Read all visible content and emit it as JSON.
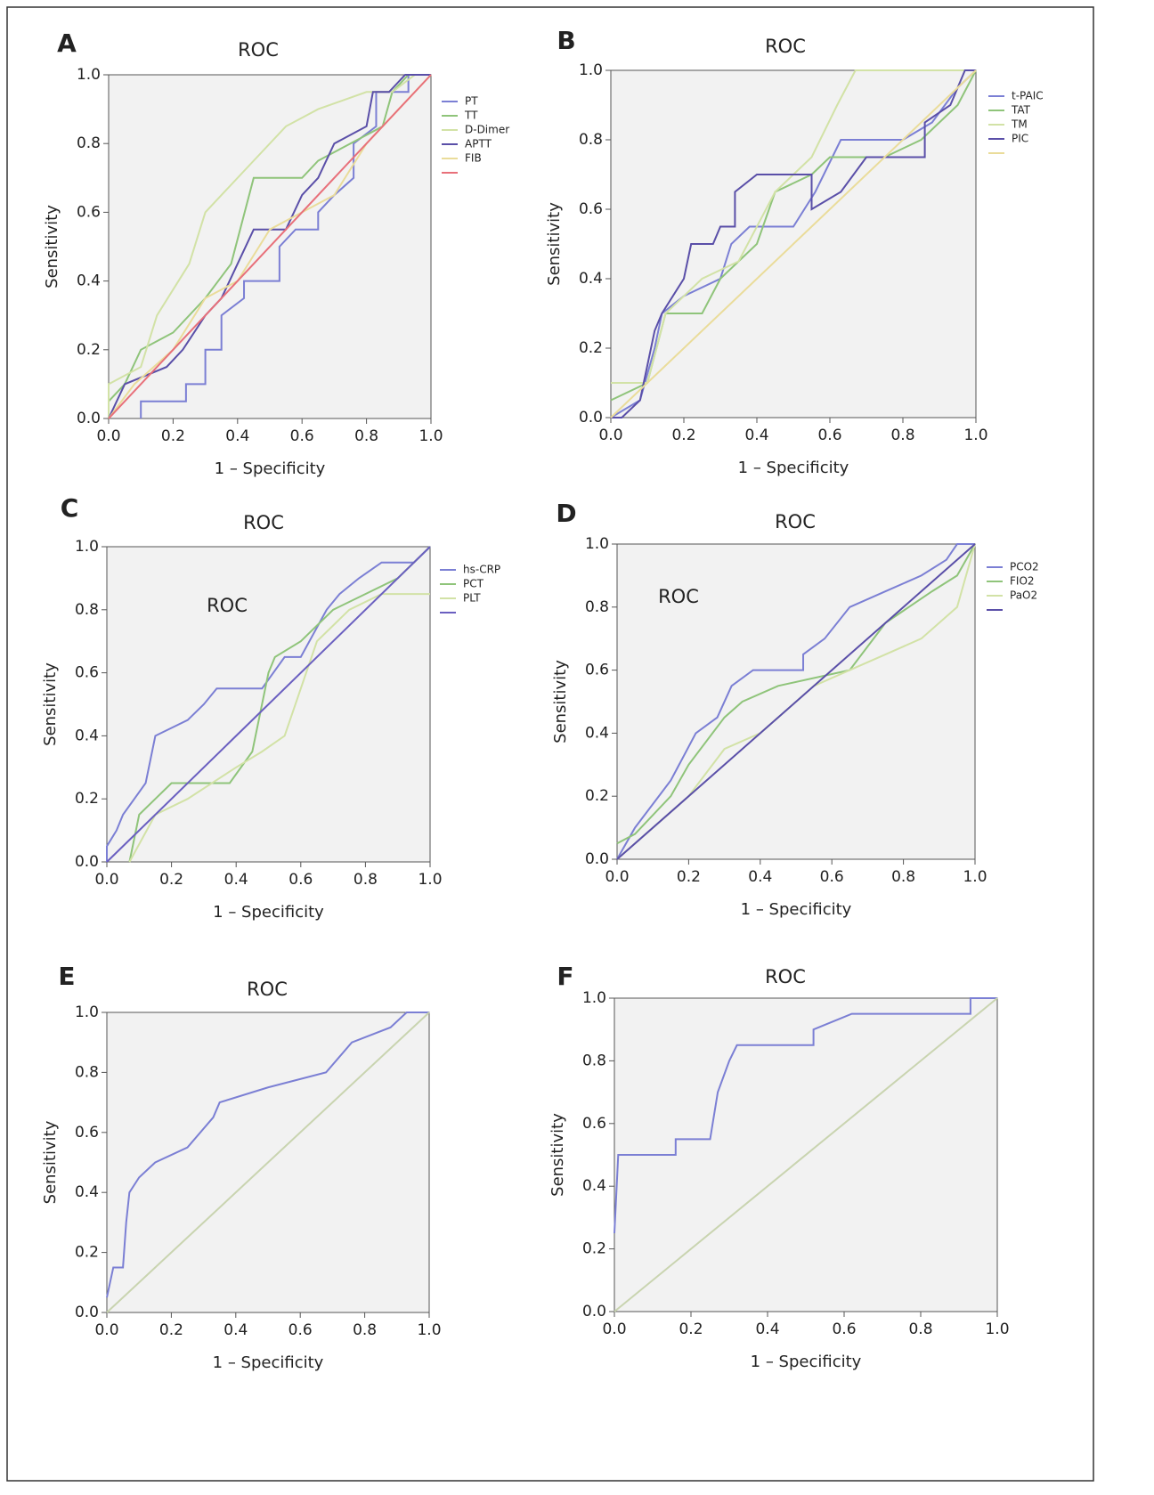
{
  "chart_data": [
    {
      "type": "line",
      "label": "A",
      "title": "ROC",
      "x_label": "1 – Specificity",
      "y_label": "Sensitivity",
      "legend": true,
      "xlim": [
        0,
        1
      ],
      "ylim": [
        0,
        1
      ],
      "xticks": [
        {
          "value": 0,
          "label": "0.0"
        },
        0.2,
        0.4,
        0.6,
        0.8,
        {
          "value": 1,
          "label": "1.0"
        }
      ],
      "yticks": [
        {
          "value": 0,
          "label": "0.0"
        },
        0.2,
        0.4,
        0.6,
        0.8,
        {
          "value": 1,
          "label": "1.0"
        }
      ],
      "series": [
        {
          "name": "PT",
          "color": "#7b7fd4",
          "x": [
            0.1,
            0.1,
            0.24,
            0.24,
            0.3,
            0.3,
            0.35,
            0.35,
            0.42,
            0.42,
            0.53,
            0.53,
            0.58,
            0.65,
            0.65,
            0.7,
            0.76,
            0.76,
            0.83,
            0.83,
            0.93,
            0.93,
            1
          ],
          "values": [
            0,
            0.05,
            0.05,
            0.1,
            0.1,
            0.2,
            0.2,
            0.3,
            0.35,
            0.4,
            0.4,
            0.5,
            0.55,
            0.55,
            0.6,
            0.65,
            0.7,
            0.8,
            0.85,
            0.95,
            0.95,
            1,
            1
          ]
        },
        {
          "name": "TT",
          "color": "#8fc47a",
          "x": [
            0,
            0,
            0.05,
            0.1,
            0.2,
            0.3,
            0.38,
            0.45,
            0.6,
            0.65,
            0.75,
            0.85,
            0.88,
            0.93,
            1
          ],
          "values": [
            0,
            0.05,
            0.1,
            0.2,
            0.25,
            0.35,
            0.45,
            0.7,
            0.7,
            0.75,
            0.8,
            0.85,
            0.95,
            1,
            1
          ]
        },
        {
          "name": "D-Dimer",
          "color": "#d2e2a6",
          "x": [
            0,
            0,
            0.1,
            0.15,
            0.25,
            0.3,
            0.35,
            0.45,
            0.55,
            0.65,
            0.8,
            0.88,
            0.95,
            1
          ],
          "values": [
            0,
            0.1,
            0.15,
            0.3,
            0.45,
            0.6,
            0.65,
            0.75,
            0.85,
            0.9,
            0.95,
            0.95,
            1,
            1
          ]
        },
        {
          "name": "APTT",
          "color": "#5a4fa8",
          "x": [
            0,
            0.05,
            0.18,
            0.23,
            0.3,
            0.35,
            0.4,
            0.45,
            0.55,
            0.6,
            0.65,
            0.7,
            0.8,
            0.82,
            0.87,
            0.92,
            1
          ],
          "values": [
            0,
            0.1,
            0.15,
            0.2,
            0.3,
            0.35,
            0.45,
            0.55,
            0.55,
            0.65,
            0.7,
            0.8,
            0.85,
            0.95,
            0.95,
            1,
            1
          ]
        },
        {
          "name": "FIB",
          "color": "#eadc9a",
          "x": [
            0,
            0.08,
            0.2,
            0.3,
            0.4,
            0.5,
            0.6,
            0.7,
            0.8,
            0.9,
            1
          ],
          "values": [
            0,
            0.1,
            0.2,
            0.35,
            0.4,
            0.55,
            0.6,
            0.65,
            0.8,
            0.9,
            1
          ]
        },
        {
          "color": "#e8707a",
          "x": [
            0,
            1
          ],
          "values": [
            0,
            1
          ]
        }
      ]
    },
    {
      "type": "line",
      "label": "B",
      "title": "ROC",
      "x_label": "1 – Specificity",
      "y_label": "Sensitivity",
      "legend": true,
      "xlim": [
        0,
        1
      ],
      "ylim": [
        0,
        1
      ],
      "xticks": [
        {
          "value": 0,
          "label": "0.0"
        },
        0.2,
        0.4,
        0.6,
        0.8,
        {
          "value": 1,
          "label": "1.0"
        }
      ],
      "yticks": [
        {
          "value": 0,
          "label": "0.0"
        },
        0.2,
        0.4,
        0.6,
        0.8,
        {
          "value": 1,
          "label": "1.0"
        }
      ],
      "series": [
        {
          "name": "t-PAIC",
          "color": "#7b7fd4",
          "x": [
            0,
            0.08,
            0.12,
            0.14,
            0.2,
            0.3,
            0.33,
            0.38,
            0.5,
            0.56,
            0.63,
            0.8,
            0.88,
            0.95,
            1
          ],
          "values": [
            0,
            0.05,
            0.2,
            0.3,
            0.35,
            0.4,
            0.5,
            0.55,
            0.55,
            0.65,
            0.8,
            0.8,
            0.85,
            0.95,
            1
          ]
        },
        {
          "name": "TAT",
          "color": "#8fc47a",
          "x": [
            0,
            0.1,
            0.15,
            0.25,
            0.3,
            0.4,
            0.45,
            0.55,
            0.6,
            0.75,
            0.85,
            0.95,
            1
          ],
          "values": [
            0.05,
            0.1,
            0.3,
            0.3,
            0.4,
            0.5,
            0.65,
            0.7,
            0.75,
            0.75,
            0.8,
            0.9,
            1
          ]
        },
        {
          "name": "TM",
          "color": "#d2e2a6",
          "x": [
            0,
            0.1,
            0.15,
            0.25,
            0.35,
            0.45,
            0.55,
            0.62,
            0.67,
            1
          ],
          "values": [
            0.1,
            0.1,
            0.3,
            0.4,
            0.45,
            0.65,
            0.75,
            0.9,
            1,
            1
          ]
        },
        {
          "name": "PIC",
          "color": "#5a4fa8",
          "x": [
            0,
            0.03,
            0.08,
            0.1,
            0.12,
            0.14,
            0.2,
            0.22,
            0.28,
            0.3,
            0.34,
            0.34,
            0.4,
            0.55,
            0.55,
            0.63,
            0.7,
            0.86,
            0.86,
            0.93,
            0.97,
            1
          ],
          "values": [
            0,
            0,
            0.05,
            0.15,
            0.25,
            0.3,
            0.4,
            0.5,
            0.5,
            0.55,
            0.55,
            0.65,
            0.7,
            0.7,
            0.6,
            0.65,
            0.75,
            0.75,
            0.85,
            0.9,
            1,
            1
          ]
        },
        {
          "color": "#eadc9a",
          "x": [
            0,
            1
          ],
          "values": [
            0,
            1
          ]
        }
      ]
    },
    {
      "type": "line",
      "label": "C",
      "title": "ROC",
      "annotation": "ROC",
      "x_label": "1 – Specificity",
      "y_label": "Sensitivity",
      "legend": true,
      "xlim": [
        0,
        1
      ],
      "ylim": [
        0,
        1
      ],
      "xticks": [
        {
          "value": 0,
          "label": "0.0"
        },
        0.2,
        0.4,
        0.6,
        0.8,
        {
          "value": 1,
          "label": "1.0"
        }
      ],
      "yticks": [
        {
          "value": 0,
          "label": "0.0"
        },
        0.2,
        0.4,
        0.6,
        0.8,
        {
          "value": 1,
          "label": "1.0"
        }
      ],
      "series": [
        {
          "name": "hs-CRP",
          "color": "#7b7fd4",
          "x": [
            0,
            0,
            0.03,
            0.05,
            0.12,
            0.15,
            0.25,
            0.3,
            0.34,
            0.48,
            0.55,
            0.6,
            0.68,
            0.72,
            0.78,
            0.85,
            0.95,
            1
          ],
          "values": [
            0,
            0.05,
            0.1,
            0.15,
            0.25,
            0.4,
            0.45,
            0.5,
            0.55,
            0.55,
            0.65,
            0.65,
            0.8,
            0.85,
            0.9,
            0.95,
            0.95,
            1
          ]
        },
        {
          "name": "PCT",
          "color": "#8fc47a",
          "x": [
            0.07,
            0.1,
            0.15,
            0.2,
            0.38,
            0.45,
            0.5,
            0.52,
            0.6,
            0.7,
            0.8,
            0.9,
            1
          ],
          "values": [
            0,
            0.15,
            0.2,
            0.25,
            0.25,
            0.35,
            0.6,
            0.65,
            0.7,
            0.8,
            0.85,
            0.9,
            1
          ]
        },
        {
          "name": "PLT",
          "color": "#d2e2a6",
          "x": [
            0.07,
            0.15,
            0.25,
            0.4,
            0.48,
            0.55,
            0.6,
            0.65,
            0.75,
            0.85,
            1
          ],
          "values": [
            0,
            0.15,
            0.2,
            0.3,
            0.35,
            0.4,
            0.55,
            0.7,
            0.8,
            0.85,
            0.85
          ]
        },
        {
          "color": "#6a5fc0",
          "x": [
            0,
            1
          ],
          "values": [
            0,
            1
          ]
        }
      ]
    },
    {
      "type": "line",
      "label": "D",
      "title": "ROC",
      "annotation": "ROC",
      "x_label": "1 – Specificity",
      "y_label": "Sensitivity",
      "legend": true,
      "xlim": [
        0,
        1
      ],
      "ylim": [
        0,
        1
      ],
      "xticks": [
        {
          "value": 0,
          "label": "0.0"
        },
        0.2,
        0.4,
        0.6,
        0.8,
        {
          "value": 1,
          "label": "1.0"
        }
      ],
      "yticks": [
        {
          "value": 0,
          "label": "0.0"
        },
        0.2,
        0.4,
        0.6,
        0.8,
        {
          "value": 1,
          "label": "1.0"
        }
      ],
      "series": [
        {
          "name": "PCO2",
          "color": "#7b7fd4",
          "x": [
            0,
            0.05,
            0.15,
            0.22,
            0.28,
            0.32,
            0.38,
            0.52,
            0.52,
            0.58,
            0.65,
            0.75,
            0.85,
            0.92,
            0.95,
            1
          ],
          "values": [
            0,
            0.1,
            0.25,
            0.4,
            0.45,
            0.55,
            0.6,
            0.6,
            0.65,
            0.7,
            0.8,
            0.85,
            0.9,
            0.95,
            1,
            1
          ]
        },
        {
          "name": "FIO2",
          "color": "#8fc47a",
          "x": [
            0,
            0.05,
            0.15,
            0.2,
            0.3,
            0.35,
            0.45,
            0.65,
            0.75,
            0.88,
            0.95,
            1
          ],
          "values": [
            0.05,
            0.08,
            0.2,
            0.3,
            0.45,
            0.5,
            0.55,
            0.6,
            0.75,
            0.85,
            0.9,
            1
          ]
        },
        {
          "name": "PaO2",
          "color": "#d2e2a6",
          "x": [
            0,
            0.1,
            0.2,
            0.3,
            0.4,
            0.55,
            0.65,
            0.75,
            0.85,
            0.95,
            1
          ],
          "values": [
            0,
            0.1,
            0.2,
            0.35,
            0.4,
            0.55,
            0.6,
            0.65,
            0.7,
            0.8,
            1
          ]
        },
        {
          "color": "#5a4fa8",
          "x": [
            0,
            1
          ],
          "values": [
            0,
            1
          ]
        }
      ]
    },
    {
      "type": "line",
      "label": "E",
      "title": "ROC",
      "x_label": "1 – Specificity",
      "y_label": "Sensitivity",
      "legend": false,
      "xlim": [
        0,
        1
      ],
      "ylim": [
        0,
        1
      ],
      "xticks": [
        {
          "value": 0,
          "label": "0.0"
        },
        0.2,
        0.4,
        0.6,
        0.8,
        {
          "value": 1,
          "label": "1.0"
        }
      ],
      "yticks": [
        {
          "value": 0,
          "label": "0.0"
        },
        0.2,
        0.4,
        0.6,
        0.8,
        {
          "value": 1,
          "label": "1.0"
        }
      ],
      "series": [
        {
          "color": "#7b7fd4",
          "x": [
            0,
            0.02,
            0.05,
            0.06,
            0.07,
            0.1,
            0.15,
            0.25,
            0.33,
            0.35,
            0.5,
            0.68,
            0.72,
            0.76,
            0.88,
            0.93,
            1
          ],
          "values": [
            0.05,
            0.15,
            0.15,
            0.3,
            0.4,
            0.45,
            0.5,
            0.55,
            0.65,
            0.7,
            0.75,
            0.8,
            0.85,
            0.9,
            0.95,
            1,
            1
          ]
        },
        {
          "color": "#c9d4b0",
          "x": [
            0,
            1
          ],
          "values": [
            0,
            1
          ]
        }
      ]
    },
    {
      "type": "line",
      "label": "F",
      "title": "ROC",
      "x_label": "1 – Specificity",
      "y_label": "Sensitivity",
      "legend": false,
      "xlim": [
        0,
        1
      ],
      "ylim": [
        0,
        1
      ],
      "xticks": [
        {
          "value": 0,
          "label": "0.0"
        },
        0.2,
        0.4,
        0.6,
        0.8,
        {
          "value": 1,
          "label": "1.0"
        }
      ],
      "yticks": [
        {
          "value": 0,
          "label": "0.0"
        },
        0.2,
        0.4,
        0.6,
        0.8,
        {
          "value": 1,
          "label": "1.0"
        }
      ],
      "series": [
        {
          "color": "#7b7fd4",
          "x": [
            0,
            0.01,
            0.16,
            0.16,
            0.25,
            0.27,
            0.3,
            0.32,
            0.52,
            0.52,
            0.62,
            0.93,
            0.93,
            1
          ],
          "values": [
            0.25,
            0.5,
            0.5,
            0.55,
            0.55,
            0.7,
            0.8,
            0.85,
            0.85,
            0.9,
            0.95,
            0.95,
            1,
            1
          ]
        },
        {
          "color": "#c9d4b0",
          "x": [
            0,
            1
          ],
          "values": [
            0,
            1
          ]
        }
      ]
    }
  ]
}
